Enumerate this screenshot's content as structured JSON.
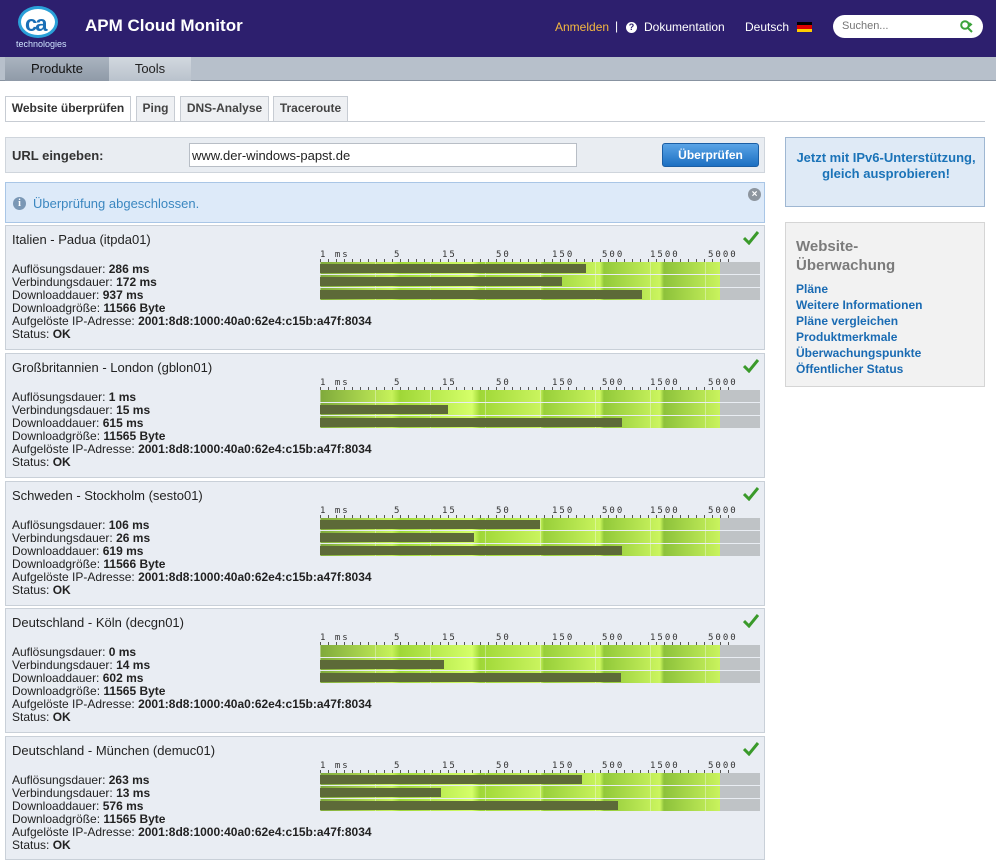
{
  "header": {
    "logo_text": "ca",
    "logo_sub": "technologies",
    "title": "APM Cloud Monitor",
    "login": "Anmelden",
    "separator": "|",
    "help_glyph": "?",
    "docs": "Dokumentation",
    "language": "Deutsch",
    "search_placeholder": "Suchen..."
  },
  "menu": {
    "products": "Produkte",
    "tools": "Tools"
  },
  "tabs": [
    "Website überprüfen",
    "Ping",
    "DNS-Analyse",
    "Traceroute"
  ],
  "url_form": {
    "label": "URL eingeben:",
    "value": "www.der-windows-papst.de",
    "button": "Überprüfen"
  },
  "info": {
    "glyph": "i",
    "text": "Überprüfung abgeschlossen.",
    "close_glyph": "×"
  },
  "scale": {
    "ticks": [
      "1 ms",
      "5",
      "15",
      "50",
      "150",
      "500",
      "1500",
      "5000"
    ]
  },
  "labels": {
    "resolve": "Auflösungsdauer:",
    "connect": "Verbindungsdauer:",
    "download": "Downloaddauer:",
    "size": "Downloadgröße:",
    "ip": "Aufgelöste IP-Adresse:",
    "status": "Status:"
  },
  "results": [
    {
      "location": "Italien - Padua (itpda01)",
      "resolve": "286 ms",
      "connect": "172 ms",
      "download": "937 ms",
      "size": "11566 Byte",
      "ip": "2001:8d8:1000:40a0:62e4:c15b:a47f:8034",
      "status": "OK",
      "fills": [
        0.665,
        0.605,
        0.805
      ]
    },
    {
      "location": "Großbritannien - London (gblon01)",
      "resolve": "1 ms",
      "connect": "15 ms",
      "download": "615 ms",
      "size": "11565 Byte",
      "ip": "2001:8d8:1000:40a0:62e4:c15b:a47f:8034",
      "status": "OK",
      "fills": [
        0.0,
        0.32,
        0.755
      ]
    },
    {
      "location": "Schweden - Stockholm (sesto01)",
      "resolve": "106 ms",
      "connect": "26 ms",
      "download": "619 ms",
      "size": "11566 Byte",
      "ip": "2001:8d8:1000:40a0:62e4:c15b:a47f:8034",
      "status": "OK",
      "fills": [
        0.55,
        0.385,
        0.755
      ]
    },
    {
      "location": "Deutschland - Köln (decgn01)",
      "resolve": "0 ms",
      "connect": "14 ms",
      "download": "602 ms",
      "size": "11565 Byte",
      "ip": "2001:8d8:1000:40a0:62e4:c15b:a47f:8034",
      "status": "OK",
      "fills": [
        0.0,
        0.31,
        0.752
      ]
    },
    {
      "location": "Deutschland - München (demuc01)",
      "resolve": "263 ms",
      "connect": "13 ms",
      "download": "576 ms",
      "size": "11565 Byte",
      "ip": "2001:8d8:1000:40a0:62e4:c15b:a47f:8034",
      "status": "OK",
      "fills": [
        0.655,
        0.303,
        0.745
      ]
    }
  ],
  "sidebar": {
    "promo": "Jetzt mit IPv6-Unterstützung, gleich ausprobieren!",
    "title": "Website-Überwachung",
    "links": [
      "Pläne",
      "Weitere Informationen",
      "Pläne vergleichen",
      "Produktmerkmale",
      "Überwachungspunkte",
      "Öffentlicher Status"
    ]
  }
}
